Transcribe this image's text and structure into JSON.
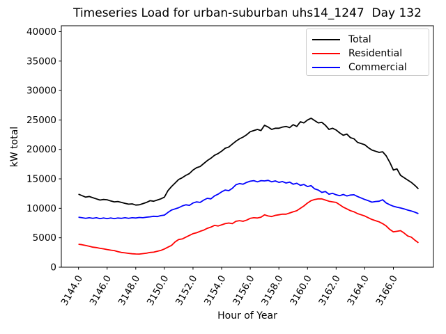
{
  "chart_data": {
    "type": "line",
    "title": "Timeseries Load for urban-suburban uhs14_1247  Day 132",
    "xlabel": "Hour of Year",
    "ylabel": "kW total",
    "xlim": [
      3142.8,
      3168.8
    ],
    "ylim": [
      0,
      41000
    ],
    "grid": false,
    "legend_position": "upper right",
    "x_ticks": [
      3144,
      3146,
      3148,
      3150,
      3152,
      3154,
      3156,
      3158,
      3160,
      3162,
      3164,
      3166
    ],
    "x_tick_labels": [
      "3144.0",
      "3146.0",
      "3148.0",
      "3150.0",
      "3152.0",
      "3154.0",
      "3156.0",
      "3158.0",
      "3160.0",
      "3162.0",
      "3164.0",
      "3166.0"
    ],
    "y_ticks": [
      0,
      5000,
      10000,
      15000,
      20000,
      25000,
      30000,
      35000,
      40000
    ],
    "y_tick_labels": [
      "0",
      "5000",
      "10000",
      "15000",
      "20000",
      "25000",
      "30000",
      "35000",
      "40000"
    ],
    "x_start": 3144.0,
    "x_step": 0.25,
    "n_points": 96,
    "series": [
      {
        "name": "Total",
        "color": "#000000",
        "values": [
          12400,
          12150,
          11900,
          12000,
          11800,
          11600,
          11400,
          11500,
          11450,
          11250,
          11100,
          11150,
          11000,
          10850,
          10700,
          10750,
          10550,
          10600,
          10800,
          11000,
          11300,
          11200,
          11400,
          11600,
          11900,
          13000,
          13700,
          14300,
          14900,
          15200,
          15600,
          15900,
          16500,
          16900,
          17100,
          17600,
          18100,
          18500,
          19000,
          19300,
          19700,
          20200,
          20400,
          20900,
          21400,
          21800,
          22100,
          22500,
          23000,
          23200,
          23400,
          23200,
          24100,
          23800,
          23400,
          23600,
          23600,
          23800,
          23900,
          23700,
          24200,
          23900,
          24700,
          24500,
          25000,
          25300,
          24900,
          24500,
          24600,
          24100,
          23400,
          23600,
          23300,
          22800,
          22400,
          22600,
          22000,
          21800,
          21200,
          21000,
          20800,
          20300,
          19900,
          19700,
          19500,
          19600,
          18900,
          17800,
          16500,
          16700,
          15600,
          15200,
          14800,
          14400,
          13900,
          13300
        ]
      },
      {
        "name": "Residential",
        "color": "#ff0000",
        "values": [
          3900,
          3820,
          3700,
          3560,
          3400,
          3330,
          3200,
          3120,
          3000,
          2900,
          2820,
          2650,
          2500,
          2430,
          2350,
          2280,
          2250,
          2230,
          2300,
          2380,
          2500,
          2550,
          2700,
          2850,
          3100,
          3400,
          3700,
          4300,
          4700,
          4800,
          5100,
          5400,
          5700,
          5850,
          6100,
          6300,
          6600,
          6800,
          7100,
          7000,
          7200,
          7400,
          7500,
          7400,
          7800,
          7900,
          7800,
          8000,
          8300,
          8400,
          8350,
          8500,
          8900,
          8700,
          8600,
          8800,
          8900,
          9000,
          9000,
          9200,
          9400,
          9600,
          10000,
          10400,
          10900,
          11300,
          11500,
          11600,
          11600,
          11400,
          11200,
          11100,
          11000,
          10600,
          10200,
          9900,
          9600,
          9400,
          9100,
          8900,
          8700,
          8400,
          8100,
          7900,
          7700,
          7400,
          7000,
          6400,
          6000,
          6100,
          6200,
          5800,
          5300,
          5100,
          4600,
          4150
        ]
      },
      {
        "name": "Commercial",
        "color": "#0000ff",
        "values": [
          8500,
          8400,
          8300,
          8400,
          8300,
          8400,
          8250,
          8350,
          8250,
          8350,
          8250,
          8350,
          8300,
          8400,
          8300,
          8400,
          8350,
          8450,
          8400,
          8500,
          8550,
          8650,
          8600,
          8750,
          8850,
          9300,
          9700,
          9900,
          10100,
          10400,
          10600,
          10500,
          10900,
          11100,
          11000,
          11400,
          11700,
          11600,
          12100,
          12400,
          12800,
          13100,
          13000,
          13400,
          14000,
          14200,
          14100,
          14400,
          14600,
          14700,
          14500,
          14700,
          14650,
          14750,
          14500,
          14650,
          14400,
          14550,
          14300,
          14450,
          14100,
          14250,
          13900,
          14050,
          13700,
          13850,
          13300,
          13100,
          12700,
          12850,
          12400,
          12550,
          12300,
          12150,
          12350,
          12100,
          12250,
          12300,
          12000,
          11750,
          11500,
          11300,
          11050,
          11150,
          11200,
          11450,
          10900,
          10600,
          10350,
          10200,
          10050,
          9900,
          9700,
          9550,
          9350,
          9100
        ]
      }
    ]
  },
  "legend": {
    "items": [
      {
        "label": "Total",
        "color": "#000000"
      },
      {
        "label": "Residential",
        "color": "#ff0000"
      },
      {
        "label": "Commercial",
        "color": "#0000ff"
      }
    ]
  },
  "frame_color": "#000000"
}
